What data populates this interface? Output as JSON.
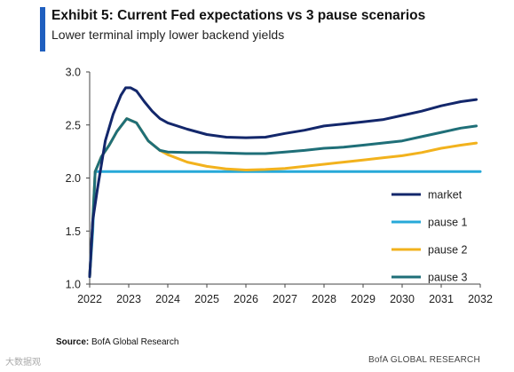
{
  "header": {
    "title": "Exhibit 5: Current Fed expectations vs 3 pause scenarios",
    "subtitle": "Lower terminal imply lower backend yields"
  },
  "footer": {
    "source_label": "Source:",
    "source_text": "BofA Global Research",
    "watermark": "大数据观",
    "brand": "BofA GLOBAL RESEARCH"
  },
  "colors": {
    "accent": "#1f5fbf",
    "market": "#13276b",
    "pause1": "#27a9d8",
    "pause2": "#f2b21d",
    "pause3": "#1f6f78"
  },
  "chart_data": {
    "type": "line",
    "title": "",
    "xlabel": "",
    "ylabel": "",
    "xlim": [
      2022,
      2032
    ],
    "ylim": [
      1.0,
      3.0
    ],
    "x_ticks": [
      "2022",
      "2023",
      "2024",
      "2025",
      "2026",
      "2027",
      "2028",
      "2029",
      "2030",
      "2031",
      "2032"
    ],
    "y_ticks": [
      "1.0",
      "1.5",
      "2.0",
      "2.5",
      "3.0"
    ],
    "grid": false,
    "legend_position": "bottom-right",
    "series": [
      {
        "name": "market",
        "color": "#13276b",
        "points": [
          [
            2022.0,
            1.07
          ],
          [
            2022.08,
            1.6
          ],
          [
            2022.2,
            1.9
          ],
          [
            2022.4,
            2.35
          ],
          [
            2022.6,
            2.6
          ],
          [
            2022.8,
            2.78
          ],
          [
            2022.92,
            2.85
          ],
          [
            2023.05,
            2.85
          ],
          [
            2023.2,
            2.82
          ],
          [
            2023.4,
            2.72
          ],
          [
            2023.6,
            2.63
          ],
          [
            2023.8,
            2.56
          ],
          [
            2024.0,
            2.52
          ],
          [
            2024.5,
            2.46
          ],
          [
            2025.0,
            2.41
          ],
          [
            2025.5,
            2.385
          ],
          [
            2026.0,
            2.38
          ],
          [
            2026.5,
            2.385
          ],
          [
            2027.0,
            2.42
          ],
          [
            2027.5,
            2.45
          ],
          [
            2028.0,
            2.49
          ],
          [
            2028.5,
            2.51
          ],
          [
            2029.0,
            2.53
          ],
          [
            2029.5,
            2.55
          ],
          [
            2030.0,
            2.59
          ],
          [
            2030.5,
            2.63
          ],
          [
            2031.0,
            2.68
          ],
          [
            2031.5,
            2.72
          ],
          [
            2031.9,
            2.74
          ]
        ]
      },
      {
        "name": "pause 1",
        "color": "#27a9d8",
        "points": [
          [
            2022.0,
            1.07
          ],
          [
            2022.08,
            1.5
          ],
          [
            2022.14,
            2.06
          ],
          [
            2032.0,
            2.06
          ]
        ]
      },
      {
        "name": "pause 2",
        "color": "#f2b21d",
        "points": [
          [
            2022.0,
            1.07
          ],
          [
            2022.08,
            1.6
          ],
          [
            2022.14,
            2.06
          ],
          [
            2022.3,
            2.2
          ],
          [
            2022.5,
            2.31
          ],
          [
            2022.7,
            2.44
          ],
          [
            2022.95,
            2.56
          ],
          [
            2023.2,
            2.52
          ],
          [
            2023.5,
            2.35
          ],
          [
            2023.8,
            2.26
          ],
          [
            2024.0,
            2.22
          ],
          [
            2024.5,
            2.15
          ],
          [
            2025.0,
            2.11
          ],
          [
            2025.5,
            2.085
          ],
          [
            2026.0,
            2.075
          ],
          [
            2026.5,
            2.08
          ],
          [
            2027.0,
            2.09
          ],
          [
            2027.5,
            2.11
          ],
          [
            2028.0,
            2.13
          ],
          [
            2028.5,
            2.15
          ],
          [
            2029.0,
            2.17
          ],
          [
            2029.5,
            2.19
          ],
          [
            2030.0,
            2.21
          ],
          [
            2030.5,
            2.24
          ],
          [
            2031.0,
            2.28
          ],
          [
            2031.5,
            2.31
          ],
          [
            2031.9,
            2.33
          ]
        ]
      },
      {
        "name": "pause 3",
        "color": "#1f6f78",
        "points": [
          [
            2022.0,
            1.07
          ],
          [
            2022.08,
            1.6
          ],
          [
            2022.14,
            2.06
          ],
          [
            2022.3,
            2.2
          ],
          [
            2022.5,
            2.31
          ],
          [
            2022.7,
            2.44
          ],
          [
            2022.95,
            2.56
          ],
          [
            2023.2,
            2.52
          ],
          [
            2023.5,
            2.35
          ],
          [
            2023.8,
            2.26
          ],
          [
            2024.0,
            2.245
          ],
          [
            2024.5,
            2.24
          ],
          [
            2025.0,
            2.24
          ],
          [
            2025.5,
            2.235
          ],
          [
            2026.0,
            2.23
          ],
          [
            2026.5,
            2.23
          ],
          [
            2027.0,
            2.245
          ],
          [
            2027.5,
            2.26
          ],
          [
            2028.0,
            2.28
          ],
          [
            2028.5,
            2.29
          ],
          [
            2029.0,
            2.31
          ],
          [
            2029.5,
            2.33
          ],
          [
            2030.0,
            2.35
          ],
          [
            2030.5,
            2.39
          ],
          [
            2031.0,
            2.43
          ],
          [
            2031.5,
            2.47
          ],
          [
            2031.9,
            2.49
          ]
        ]
      }
    ]
  }
}
